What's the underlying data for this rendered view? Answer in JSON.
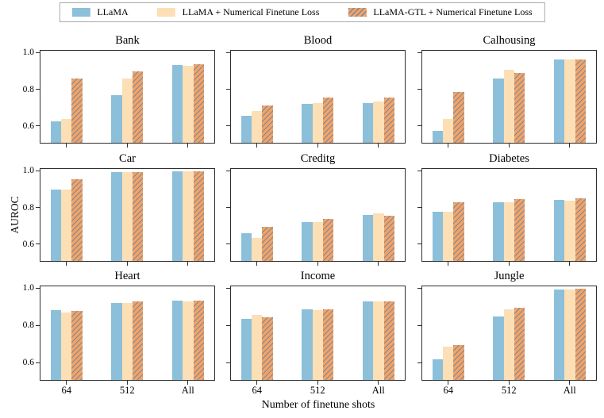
{
  "legend": {
    "items": [
      {
        "label": "LLaMA",
        "swatch": "solid-blue",
        "color": "#8CC0DA"
      },
      {
        "label": "LLaMA + Numerical Finetune Loss",
        "swatch": "solid-peach",
        "color": "#FCDFB4"
      },
      {
        "label": "LLaMA-GTL + Numerical Finetune Loss",
        "swatch": "hatched-orange",
        "color": "#F1A367",
        "hatch_color": "#7F8798"
      }
    ]
  },
  "axes": {
    "ylabel": "AUROC",
    "xlabel": "Number of finetune shots"
  },
  "chart_data": {
    "type": "bar",
    "layout": "3x3-grid",
    "grid": false,
    "legend_position": "top-center",
    "categories": [
      "64",
      "512",
      "All"
    ],
    "yticks": [
      0.6,
      0.8,
      1.0
    ],
    "ylim": [
      0.51,
      1.01
    ],
    "xlabel": "Number of finetune shots",
    "ylabel": "AUROC",
    "series_names": [
      "LLaMA",
      "LLaMA + Numerical Finetune Loss",
      "LLaMA-GTL + Numerical Finetune Loss"
    ],
    "subplots": [
      {
        "title": "Bank",
        "series": [
          {
            "name": "LLaMA",
            "values": [
              0.625,
              0.77,
              0.935
            ]
          },
          {
            "name": "LLaMA + Numerical Finetune Loss",
            "values": [
              0.64,
              0.86,
              0.93
            ]
          },
          {
            "name": "LLaMA-GTL + Numerical Finetune Loss",
            "values": [
              0.86,
              0.9,
              0.937
            ]
          }
        ]
      },
      {
        "title": "Blood",
        "series": [
          {
            "name": "LLaMA",
            "values": [
              0.655,
              0.72,
              0.725
            ]
          },
          {
            "name": "LLaMA + Numerical Finetune Loss",
            "values": [
              0.685,
              0.728,
              0.735
            ]
          },
          {
            "name": "LLaMA-GTL + Numerical Finetune Loss",
            "values": [
              0.715,
              0.755,
              0.755
            ]
          }
        ]
      },
      {
        "title": "Calhousing",
        "series": [
          {
            "name": "LLaMA",
            "values": [
              0.575,
              0.86,
              0.965
            ]
          },
          {
            "name": "LLaMA + Numerical Finetune Loss",
            "values": [
              0.64,
              0.91,
              0.963
            ]
          },
          {
            "name": "LLaMA-GTL + Numerical Finetune Loss",
            "values": [
              0.785,
              0.89,
              0.963
            ]
          }
        ]
      },
      {
        "title": "Car",
        "series": [
          {
            "name": "LLaMA",
            "values": [
              0.9,
              0.993,
              0.998
            ]
          },
          {
            "name": "LLaMA + Numerical Finetune Loss",
            "values": [
              0.9,
              0.993,
              0.998
            ]
          },
          {
            "name": "LLaMA-GTL + Numerical Finetune Loss",
            "values": [
              0.955,
              0.995,
              0.998
            ]
          }
        ]
      },
      {
        "title": "Creditg",
        "series": [
          {
            "name": "LLaMA",
            "values": [
              0.66,
              0.72,
              0.76
            ]
          },
          {
            "name": "LLaMA + Numerical Finetune Loss",
            "values": [
              0.635,
              0.72,
              0.768
            ]
          },
          {
            "name": "LLaMA-GTL + Numerical Finetune Loss",
            "values": [
              0.695,
              0.74,
              0.758
            ]
          }
        ]
      },
      {
        "title": "Diabetes",
        "series": [
          {
            "name": "LLaMA",
            "values": [
              0.778,
              0.83,
              0.845
            ]
          },
          {
            "name": "LLaMA + Numerical Finetune Loss",
            "values": [
              0.778,
              0.828,
              0.84
            ]
          },
          {
            "name": "LLaMA-GTL + Numerical Finetune Loss",
            "values": [
              0.83,
              0.848,
              0.853
            ]
          }
        ]
      },
      {
        "title": "Heart",
        "series": [
          {
            "name": "LLaMA",
            "values": [
              0.885,
              0.924,
              0.934
            ]
          },
          {
            "name": "LLaMA + Numerical Finetune Loss",
            "values": [
              0.87,
              0.922,
              0.93
            ]
          },
          {
            "name": "LLaMA-GTL + Numerical Finetune Loss",
            "values": [
              0.878,
              0.93,
              0.934
            ]
          }
        ]
      },
      {
        "title": "Income",
        "series": [
          {
            "name": "LLaMA",
            "values": [
              0.838,
              0.888,
              0.93
            ]
          },
          {
            "name": "LLaMA + Numerical Finetune Loss",
            "values": [
              0.858,
              0.885,
              0.93
            ]
          },
          {
            "name": "LLaMA-GTL + Numerical Finetune Loss",
            "values": [
              0.845,
              0.888,
              0.93
            ]
          }
        ]
      },
      {
        "title": "Jungle",
        "series": [
          {
            "name": "LLaMA",
            "values": [
              0.62,
              0.85,
              0.995
            ]
          },
          {
            "name": "LLaMA + Numerical Finetune Loss",
            "values": [
              0.688,
              0.888,
              0.995
            ]
          },
          {
            "name": "LLaMA-GTL + Numerical Finetune Loss",
            "values": [
              0.698,
              0.897,
              0.997
            ]
          }
        ]
      }
    ]
  }
}
